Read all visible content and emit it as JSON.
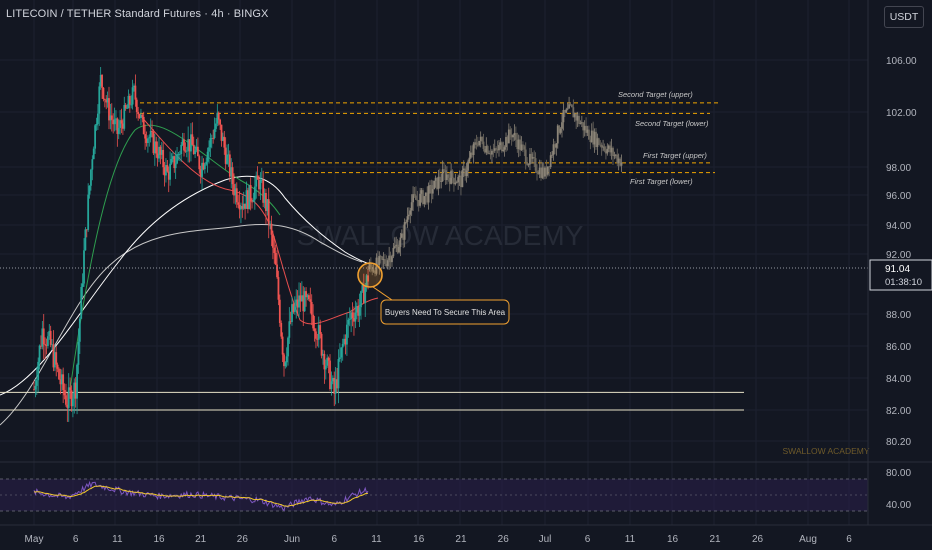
{
  "header": {
    "title": "LITECOIN / TETHER Standard Futures · 4h · BINGX",
    "currency": "USDT"
  },
  "colors": {
    "background": "#131722",
    "grid": "#1c2030",
    "up_candle": "#26a69a",
    "down_candle": "#ef5350",
    "projection_candle": "#8c8579",
    "target_line": "#f0a500",
    "support_line": "#e8e3c8",
    "ma_fast": "#e84e4e",
    "ma_mid": "#2e9e4f",
    "ma_slow": "#ffffff",
    "ma_slowest": "#c9c9c9",
    "rsi_line": "#7e57c2",
    "rsi_signal": "#f3c92e",
    "highlight_circle": "#f0a030"
  },
  "watermark": "SWALLOW ACADEMY",
  "watermark_small": "SWALLOW ACADEMY",
  "annotations": {
    "callout": "Buyers Need To Secure This Area",
    "second_upper": "Second Target (upper)",
    "second_lower": "Second Target (lower)",
    "first_upper": "First Target (upper)",
    "first_lower": "First Target (lower)"
  },
  "price_label": {
    "price": "91.04",
    "countdown": "01:38:10"
  },
  "chart_data": {
    "type": "candlestick",
    "price_axis": {
      "ticks": [
        "106.00",
        "102.00",
        "98.00",
        "96.00",
        "94.00",
        "92.00",
        "88.00",
        "86.00",
        "84.00",
        "82.00",
        "80.20"
      ],
      "tick_values": [
        106,
        102,
        98,
        96,
        94,
        92,
        88,
        86,
        84,
        82,
        80.2
      ],
      "range": [
        79.3,
        109.1
      ]
    },
    "rsi_axis": {
      "ticks": [
        "80.00",
        "40.00"
      ],
      "tick_values": [
        80,
        40
      ],
      "range": [
        30,
        90
      ],
      "band": [
        40,
        70
      ]
    },
    "time_axis": {
      "ticks": [
        "May",
        "6",
        "11",
        "16",
        "21",
        "26",
        "Jun",
        "6",
        "11",
        "16",
        "21",
        "26",
        "Jul",
        "6",
        "11",
        "16",
        "21",
        "26",
        "Aug",
        "6"
      ],
      "tick_dates": [
        "2025-05-01",
        "2025-05-06",
        "2025-05-11",
        "2025-05-16",
        "2025-05-21",
        "2025-05-26",
        "2025-06-01",
        "2025-06-06",
        "2025-06-11",
        "2025-06-16",
        "2025-06-21",
        "2025-06-26",
        "2025-07-01",
        "2025-07-06",
        "2025-07-11",
        "2025-07-16",
        "2025-07-21",
        "2025-07-26",
        "2025-08-01",
        "2025-08-06"
      ]
    },
    "current_price": 91.04,
    "levels": [
      {
        "name": "Second Target (upper)",
        "value": 102.7,
        "style": "dashed"
      },
      {
        "name": "Second Target (lower)",
        "value": 101.9,
        "style": "dashed"
      },
      {
        "name": "First Target (upper)",
        "value": 98.3,
        "style": "dashed"
      },
      {
        "name": "First Target (lower)",
        "value": 97.6,
        "style": "dashed"
      },
      {
        "value": 83.1,
        "style": "solid"
      },
      {
        "value": 82.0,
        "style": "solid"
      }
    ],
    "price_path": [
      [
        "2025-05-01",
        83.3
      ],
      [
        "2025-05-02",
        87.0
      ],
      [
        "2025-05-03",
        86.0
      ],
      [
        "2025-05-04",
        84.0
      ],
      [
        "2025-05-05",
        82.5
      ],
      [
        "2025-05-06",
        83.5
      ],
      [
        "2025-05-07",
        92.0
      ],
      [
        "2025-05-08",
        99.0
      ],
      [
        "2025-05-09",
        104.5
      ],
      [
        "2025-05-10",
        102.0
      ],
      [
        "2025-05-11",
        100.5
      ],
      [
        "2025-05-12",
        102.0
      ],
      [
        "2025-05-13",
        103.5
      ],
      [
        "2025-05-14",
        101.0
      ],
      [
        "2025-05-15",
        100.0
      ],
      [
        "2025-05-16",
        99.0
      ],
      [
        "2025-05-17",
        97.5
      ],
      [
        "2025-05-18",
        98.5
      ],
      [
        "2025-05-19",
        100.0
      ],
      [
        "2025-05-20",
        99.5
      ],
      [
        "2025-05-21",
        98.0
      ],
      [
        "2025-05-22",
        99.5
      ],
      [
        "2025-05-23",
        101.5
      ],
      [
        "2025-05-24",
        99.0
      ],
      [
        "2025-05-25",
        96.5
      ],
      [
        "2025-05-26",
        95.5
      ],
      [
        "2025-05-27",
        96.0
      ],
      [
        "2025-05-28",
        97.0
      ],
      [
        "2025-05-29",
        95.0
      ],
      [
        "2025-05-30",
        91.0
      ],
      [
        "2025-05-31",
        85.0
      ],
      [
        "2025-06-01",
        88.0
      ],
      [
        "2025-06-02",
        89.0
      ],
      [
        "2025-06-03",
        88.5
      ],
      [
        "2025-06-04",
        87.0
      ],
      [
        "2025-06-05",
        85.0
      ],
      [
        "2025-06-06",
        83.0
      ],
      [
        "2025-06-07",
        86.0
      ],
      [
        "2025-06-08",
        88.0
      ],
      [
        "2025-06-09",
        88.5
      ],
      [
        "2025-06-10",
        90.5
      ]
    ],
    "projection_path": [
      [
        "2025-06-10",
        91.0
      ],
      [
        "2025-06-12",
        91.5
      ],
      [
        "2025-06-14",
        93.0
      ],
      [
        "2025-06-15",
        95.5
      ],
      [
        "2025-06-17",
        96.0
      ],
      [
        "2025-06-19",
        97.5
      ],
      [
        "2025-06-21",
        97.0
      ],
      [
        "2025-06-23",
        100.0
      ],
      [
        "2025-06-25",
        99.0
      ],
      [
        "2025-06-27",
        100.5
      ],
      [
        "2025-06-29",
        98.5
      ],
      [
        "2025-07-01",
        97.5
      ],
      [
        "2025-07-03",
        101.5
      ],
      [
        "2025-07-04",
        102.2
      ],
      [
        "2025-07-06",
        100.5
      ],
      [
        "2025-07-08",
        99.5
      ],
      [
        "2025-07-10",
        98.4
      ]
    ],
    "rsi_path": [
      [
        "2025-05-01",
        55
      ],
      [
        "2025-05-05",
        48
      ],
      [
        "2025-05-08",
        65
      ],
      [
        "2025-05-12",
        55
      ],
      [
        "2025-05-16",
        50
      ],
      [
        "2025-05-20",
        52
      ],
      [
        "2025-05-24",
        48
      ],
      [
        "2025-05-28",
        45
      ],
      [
        "2025-05-31",
        35
      ],
      [
        "2025-06-03",
        48
      ],
      [
        "2025-06-06",
        38
      ],
      [
        "2025-06-08",
        50
      ],
      [
        "2025-06-10",
        58
      ]
    ]
  }
}
